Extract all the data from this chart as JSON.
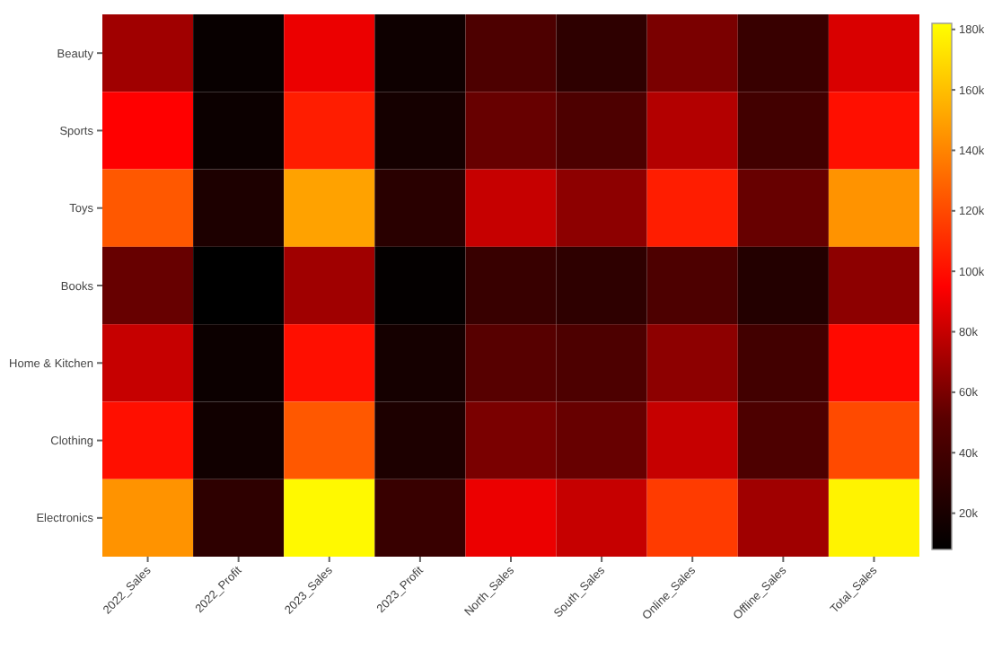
{
  "chart_data": {
    "type": "heatmap",
    "categories": [
      "2022_Sales",
      "2022_Profit",
      "2023_Sales",
      "2023_Profit",
      "North_Sales",
      "South_Sales",
      "Online_Sales",
      "Offline_Sales",
      "Total_Sales"
    ],
    "y_categories": [
      "Beauty",
      "Sports",
      "Toys",
      "Books",
      "Home & Kitchen",
      "Clothing",
      "Electronics"
    ],
    "cells": [
      [
        70000,
        12000,
        90000,
        15000,
        45000,
        30000,
        60000,
        35000,
        85000
      ],
      [
        95000,
        14000,
        105000,
        18000,
        55000,
        45000,
        75000,
        40000,
        100000
      ],
      [
        125000,
        22000,
        150000,
        28000,
        80000,
        65000,
        105000,
        55000,
        145000
      ],
      [
        55000,
        8000,
        70000,
        10000,
        35000,
        30000,
        45000,
        25000,
        65000
      ],
      [
        80000,
        14000,
        100000,
        18000,
        50000,
        45000,
        65000,
        40000,
        98000
      ],
      [
        100000,
        16000,
        125000,
        22000,
        60000,
        55000,
        80000,
        45000,
        120000
      ],
      [
        145000,
        30000,
        180000,
        35000,
        90000,
        80000,
        115000,
        70000,
        178000
      ]
    ],
    "clim": [
      8000,
      182000
    ],
    "cticks": [
      {
        "value": 20000,
        "label": "20k"
      },
      {
        "value": 40000,
        "label": "40k"
      },
      {
        "value": 60000,
        "label": "60k"
      },
      {
        "value": 80000,
        "label": "80k"
      },
      {
        "value": 100000,
        "label": "100k"
      },
      {
        "value": 120000,
        "label": "120k"
      },
      {
        "value": 140000,
        "label": "140k"
      },
      {
        "value": 160000,
        "label": "160k"
      },
      {
        "value": 180000,
        "label": "180k"
      }
    ],
    "colors": [
      "#000000",
      "#5a0000",
      "#ff0000",
      "#ff8000",
      "#ffff00"
    ]
  }
}
